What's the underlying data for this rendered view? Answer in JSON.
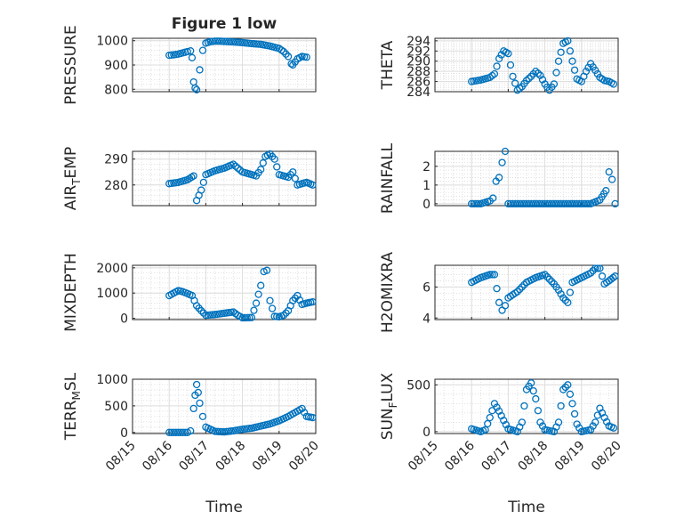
{
  "figure": {
    "title": "Figure 1 low",
    "marker_color": "#0072BD"
  },
  "chart_data": [
    {
      "type": "scatter",
      "ylabel": "PRESSURE",
      "xlabel": "",
      "ylim": [
        790,
        1010
      ],
      "yticks": [
        800,
        900,
        1000
      ],
      "xlim": [
        "08/15",
        "08/20"
      ],
      "x": [
        "08/16 00:00",
        "08/16 03:00",
        "08/16 06:00",
        "08/16 09:00",
        "08/16 12:00",
        "08/16 14:00",
        "08/16 15:00",
        "08/16 16:00",
        "08/16 17:00",
        "08/16 18:00",
        "08/16 20:00",
        "08/16 22:00",
        "08/17 00:00",
        "08/17 03:00",
        "08/17 06:00",
        "08/17 09:00",
        "08/17 12:00",
        "08/17 18:00",
        "08/18 00:00",
        "08/18 06:00",
        "08/18 12:00",
        "08/18 18:00",
        "08/19 00:00",
        "08/19 03:00",
        "08/19 06:00",
        "08/19 08:00",
        "08/19 09:00",
        "08/19 12:00",
        "08/19 15:00",
        "08/19 18:00"
      ],
      "y": [
        940,
        942,
        945,
        950,
        955,
        958,
        930,
        830,
        805,
        798,
        880,
        960,
        990,
        996,
        998,
        998,
        997,
        995,
        992,
        988,
        985,
        978,
        968,
        955,
        935,
        905,
        900,
        925,
        935,
        932
      ]
    },
    {
      "type": "scatter",
      "ylabel": "THETA",
      "xlabel": "",
      "ylim": [
        284,
        294.5
      ],
      "yticks": [
        284,
        286,
        288,
        290,
        292,
        294
      ],
      "xlim": [
        "08/15",
        "08/20"
      ],
      "x": [
        "08/16 00:00",
        "08/16 06:00",
        "08/16 12:00",
        "08/16 15:00",
        "08/16 18:00",
        "08/16 21:00",
        "08/17 00:00",
        "08/17 03:00",
        "08/17 06:00",
        "08/17 09:00",
        "08/17 12:00",
        "08/17 15:00",
        "08/17 18:00",
        "08/17 21:00",
        "08/18 00:00",
        "08/18 03:00",
        "08/18 06:00",
        "08/18 09:00",
        "08/18 12:00",
        "08/18 15:00",
        "08/18 18:00",
        "08/18 21:00",
        "08/19 00:00",
        "08/19 03:00",
        "08/19 06:00",
        "08/19 09:00",
        "08/19 12:00",
        "08/19 15:00",
        "08/19 18:00",
        "08/19 21:00"
      ],
      "y": [
        286,
        286.3,
        286.8,
        287.5,
        290.5,
        292,
        291.5,
        287,
        284.3,
        285,
        286.2,
        287,
        288,
        287.2,
        285.5,
        284.3,
        285.5,
        290,
        293.5,
        294,
        290,
        286.5,
        286,
        288,
        289.5,
        288.2,
        286.8,
        286.2,
        286,
        285.5
      ]
    },
    {
      "type": "scatter",
      "ylabel": "AIR_TEMP",
      "xlabel": "",
      "ylim": [
        272,
        293
      ],
      "yticks": [
        280,
        290
      ],
      "xlim": [
        "08/15",
        "08/20"
      ],
      "x": [
        "08/16 00:00",
        "08/16 06:00",
        "08/16 12:00",
        "08/16 16:00",
        "08/16 18:00",
        "08/16 21:00",
        "08/17 00:00",
        "08/17 06:00",
        "08/17 12:00",
        "08/17 18:00",
        "08/18 00:00",
        "08/18 06:00",
        "08/18 09:00",
        "08/18 12:00",
        "08/18 15:00",
        "08/18 18:00",
        "08/18 21:00",
        "08/19 00:00",
        "08/19 06:00",
        "08/19 09:00",
        "08/19 12:00",
        "08/19 18:00",
        "08/19 22:00"
      ],
      "y": [
        280.5,
        281,
        282,
        283.5,
        274,
        278,
        284,
        285.5,
        286.5,
        288,
        285,
        284,
        283.5,
        286,
        291,
        292,
        290,
        284,
        283,
        285,
        280,
        281,
        280
      ]
    },
    {
      "type": "scatter",
      "ylabel": "RAINFALL",
      "xlabel": "",
      "ylim": [
        -0.1,
        2.8
      ],
      "yticks": [
        0,
        1,
        2
      ],
      "xlim": [
        "08/15",
        "08/20"
      ],
      "x": [
        "08/16 00:00",
        "08/16 06:00",
        "08/16 12:00",
        "08/16 14:00",
        "08/16 16:00",
        "08/16 18:00",
        "08/16 20:00",
        "08/16 22:00",
        "08/17 00:00",
        "08/17 06:00",
        "08/17 12:00",
        "08/17 18:00",
        "08/18 00:00",
        "08/18 06:00",
        "08/18 12:00",
        "08/18 18:00",
        "08/19 00:00",
        "08/19 06:00",
        "08/19 12:00",
        "08/19 16:00",
        "08/19 18:00",
        "08/19 20:00",
        "08/19 22:00"
      ],
      "y": [
        0,
        0,
        0.15,
        0.3,
        1.2,
        1.4,
        2.2,
        2.8,
        0,
        0,
        0,
        0,
        0,
        0,
        0,
        0,
        0,
        0,
        0.2,
        0.7,
        1.7,
        1.3,
        0
      ]
    },
    {
      "type": "scatter",
      "ylabel": "MIXDEPTH",
      "xlabel": "",
      "ylim": [
        -50,
        2100
      ],
      "yticks": [
        0,
        1000,
        2000
      ],
      "xlim": [
        "08/15",
        "08/20"
      ],
      "x": [
        "08/16 00:00",
        "08/16 03:00",
        "08/16 06:00",
        "08/16 09:00",
        "08/16 12:00",
        "08/16 15:00",
        "08/16 18:00",
        "08/16 21:00",
        "08/17 00:00",
        "08/17 06:00",
        "08/17 12:00",
        "08/17 18:00",
        "08/17 21:00",
        "08/18 00:00",
        "08/18 06:00",
        "08/18 09:00",
        "08/18 12:00",
        "08/18 14:00",
        "08/18 16:00",
        "08/18 18:00",
        "08/18 21:00",
        "08/19 00:00",
        "08/19 03:00",
        "08/19 06:00",
        "08/19 09:00",
        "08/19 12:00",
        "08/19 15:00",
        "08/19 18:00",
        "08/19 22:00"
      ],
      "y": [
        900,
        1000,
        1100,
        1050,
        980,
        900,
        500,
        300,
        120,
        150,
        200,
        250,
        120,
        20,
        30,
        600,
        1300,
        1850,
        1900,
        700,
        80,
        60,
        120,
        300,
        700,
        900,
        550,
        600,
        650
      ]
    },
    {
      "type": "scatter",
      "ylabel": "H2OMIXRA",
      "xlabel": "",
      "ylim": [
        3.9,
        7.4
      ],
      "yticks": [
        4,
        6
      ],
      "xlim": [
        "08/15",
        "08/20"
      ],
      "x": [
        "08/16 00:00",
        "08/16 06:00",
        "08/16 12:00",
        "08/16 15:00",
        "08/16 18:00",
        "08/16 20:00",
        "08/16 22:00",
        "08/17 00:00",
        "08/17 06:00",
        "08/17 12:00",
        "08/17 18:00",
        "08/18 00:00",
        "08/18 06:00",
        "08/18 09:00",
        "08/18 12:00",
        "08/18 15:00",
        "08/18 18:00",
        "08/19 00:00",
        "08/19 06:00",
        "08/19 09:00",
        "08/19 12:00",
        "08/19 15:00",
        "08/19 18:00",
        "08/19 22:00"
      ],
      "y": [
        6.3,
        6.6,
        6.8,
        6.8,
        5,
        4.5,
        4.8,
        5.3,
        5.7,
        6.3,
        6.6,
        6.8,
        6.2,
        5.8,
        5.3,
        5.0,
        6.3,
        6.6,
        6.9,
        7.2,
        7.2,
        6.2,
        6.4,
        6.7
      ]
    },
    {
      "type": "scatter",
      "ylabel": "TERR_MSL",
      "xlabel": "Time",
      "ylim": [
        -20,
        1000
      ],
      "yticks": [
        0,
        500,
        1000
      ],
      "xlim": [
        "08/15",
        "08/20"
      ],
      "x": [
        "08/16 00:00",
        "08/16 06:00",
        "08/16 12:00",
        "08/16 14:00",
        "08/16 16:00",
        "08/16 17:00",
        "08/16 18:00",
        "08/16 19:00",
        "08/16 20:00",
        "08/16 22:00",
        "08/17 00:00",
        "08/17 06:00",
        "08/17 12:00",
        "08/17 18:00",
        "08/18 00:00",
        "08/18 06:00",
        "08/18 12:00",
        "08/18 18:00",
        "08/19 00:00",
        "08/19 06:00",
        "08/19 12:00",
        "08/19 15:00",
        "08/19 18:00",
        "08/19 22:00"
      ],
      "y": [
        0,
        0,
        0,
        30,
        450,
        700,
        900,
        750,
        550,
        300,
        100,
        20,
        10,
        30,
        60,
        80,
        120,
        160,
        220,
        300,
        400,
        450,
        300,
        280
      ]
    },
    {
      "type": "scatter",
      "ylabel": "SUN_FLUX",
      "xlabel": "Time",
      "ylim": [
        -20,
        560
      ],
      "yticks": [
        0,
        500
      ],
      "xlim": [
        "08/15",
        "08/20"
      ],
      "x": [
        "08/16 00:00",
        "08/16 06:00",
        "08/16 09:00",
        "08/16 12:00",
        "08/16 15:00",
        "08/16 18:00",
        "08/16 21:00",
        "08/17 00:00",
        "08/17 06:00",
        "08/17 09:00",
        "08/17 12:00",
        "08/17 15:00",
        "08/17 18:00",
        "08/17 21:00",
        "08/18 00:00",
        "08/18 06:00",
        "08/18 09:00",
        "08/18 12:00",
        "08/18 15:00",
        "08/18 18:00",
        "08/18 21:00",
        "08/19 00:00",
        "08/19 06:00",
        "08/19 09:00",
        "08/19 12:00",
        "08/19 15:00",
        "08/19 18:00",
        "08/19 21:00"
      ],
      "y": [
        30,
        0,
        20,
        150,
        300,
        220,
        120,
        30,
        0,
        100,
        450,
        520,
        350,
        100,
        20,
        0,
        100,
        450,
        500,
        300,
        80,
        0,
        20,
        100,
        250,
        150,
        60,
        40
      ]
    }
  ],
  "xaxis_tick_labels": [
    "08/15",
    "08/16",
    "08/17",
    "08/18",
    "08/19",
    "08/20"
  ]
}
